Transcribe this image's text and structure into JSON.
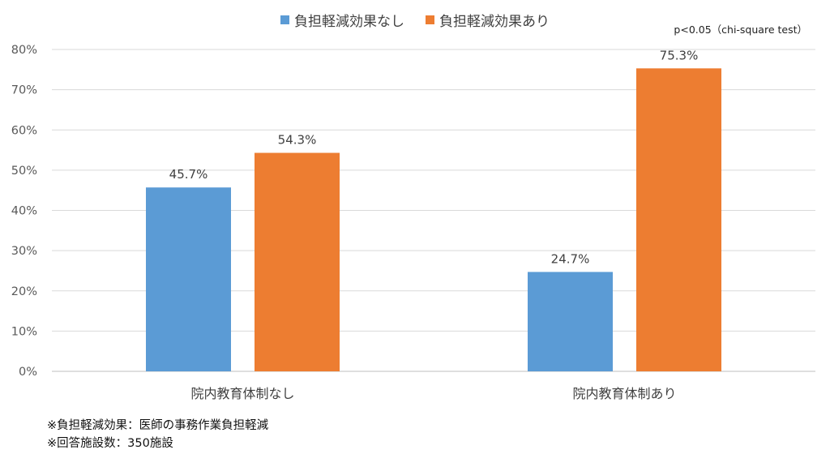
{
  "chart_data": {
    "type": "bar",
    "categories": [
      "院内教育体制なし",
      "院内教育体制あり"
    ],
    "series": [
      {
        "name": "負担軽減効果なし",
        "values": [
          45.7,
          24.7
        ],
        "color": "#5B9BD5"
      },
      {
        "name": "負担軽減効果あり",
        "values": [
          54.3,
          75.3
        ],
        "color": "#ED7D31"
      }
    ],
    "ylim": [
      0,
      80
    ],
    "yticks": [
      "0%",
      "10%",
      "20%",
      "30%",
      "40%",
      "50%",
      "60%",
      "70%",
      "80%"
    ],
    "data_labels": [
      [
        "45.7%",
        "24.7%"
      ],
      [
        "54.3%",
        "75.3%"
      ]
    ],
    "grid": true,
    "legend": "top-center",
    "annotation": "p<0.05（chi-square test）"
  },
  "footnotes": [
    "※負担軽減効果：医師の事務作業負担軽減",
    "※回答施設数：350施設"
  ]
}
